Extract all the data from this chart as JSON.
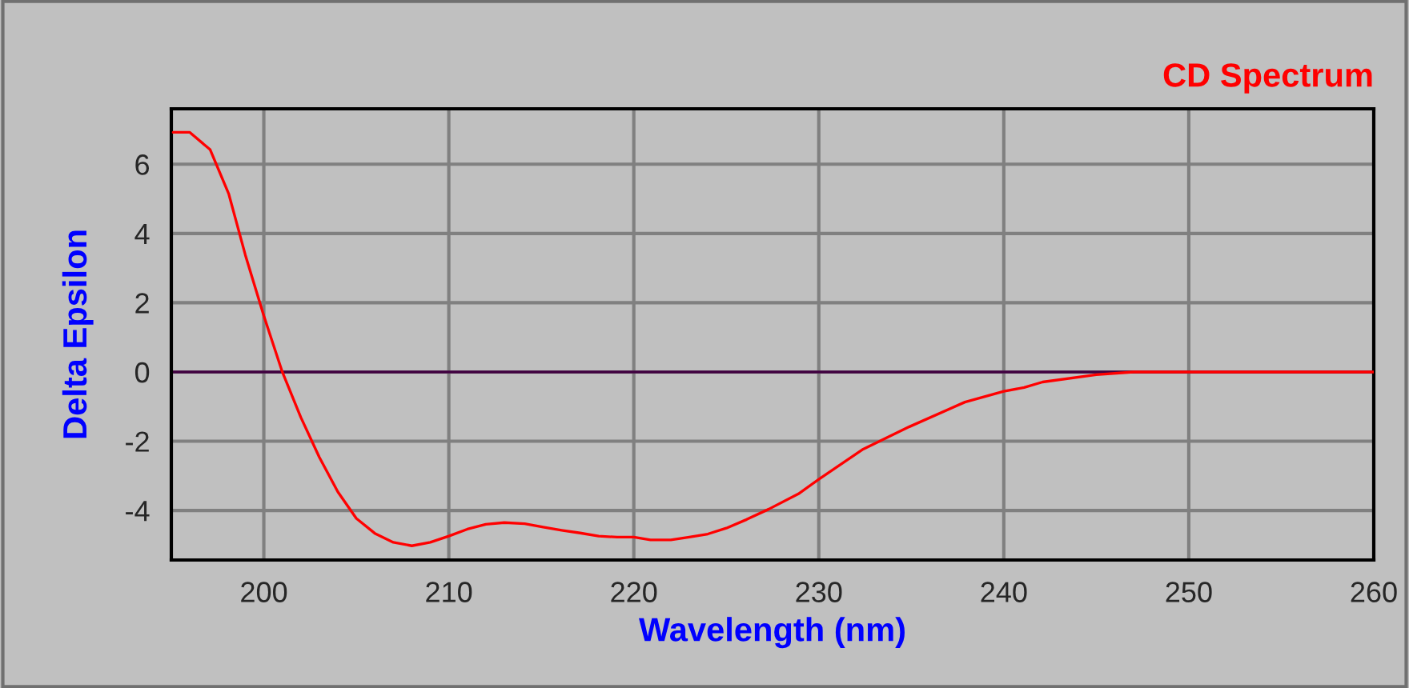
{
  "chart_data": {
    "type": "line",
    "title": "CD Spectrum",
    "xlabel": "Wavelength (nm)",
    "ylabel": "Delta Epsilon",
    "series": [
      {
        "color": "#ff0000",
        "x": [
          195.1,
          196.0,
          197.1,
          198.1,
          199.0,
          200.0,
          201.0,
          202.0,
          203.0,
          204.0,
          205.0,
          206.0,
          207.0,
          208.0,
          209.0,
          210.0,
          211.0,
          212.0,
          213.0,
          214.1,
          215.1,
          216.1,
          217.1,
          218.1,
          219.1,
          220.0,
          220.9,
          222.0,
          223.0,
          224.0,
          225.0,
          226.1,
          227.3,
          228.9,
          230.0,
          232.4,
          234.9,
          237.9,
          240.0,
          241.1,
          242.1,
          245.0,
          247.0,
          260.0
        ],
        "values": [
          6.92,
          6.92,
          6.42,
          5.15,
          3.38,
          1.62,
          0,
          -1.31,
          -2.46,
          -3.46,
          -4.23,
          -4.66,
          -4.92,
          -5.02,
          -4.92,
          -4.74,
          -4.54,
          -4.4,
          -4.35,
          -4.38,
          -4.48,
          -4.57,
          -4.65,
          -4.74,
          -4.77,
          -4.77,
          -4.85,
          -4.85,
          -4.77,
          -4.68,
          -4.51,
          -4.26,
          -3.96,
          -3.52,
          -3.1,
          -2.23,
          -1.58,
          -0.87,
          -0.56,
          -0.45,
          -0.29,
          -0.08,
          0,
          0
        ]
      }
    ],
    "xlim": [
      195,
      260
    ],
    "xticks": [
      200,
      210,
      220,
      230,
      240,
      250,
      260
    ],
    "ylim": [
      -5.43,
      7.6
    ],
    "yticks": [
      -4,
      -2,
      0,
      2,
      4,
      6
    ],
    "ref_lines": [
      {
        "axis": "y",
        "value": 0,
        "color": "#400040",
        "line_style": "solid"
      }
    ],
    "grid": true,
    "legend": false,
    "marker": "none",
    "line_style": "solid"
  }
}
